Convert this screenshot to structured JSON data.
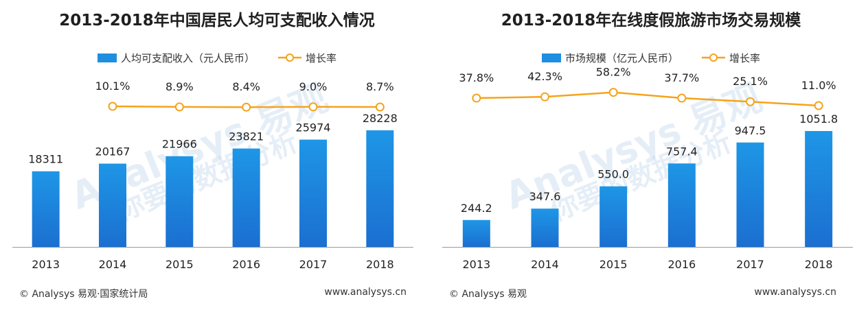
{
  "colors": {
    "bar": "#1e8fe0",
    "bar_dark": "#1a74d4",
    "line": "#f5a31a",
    "axis": "#999999"
  },
  "left": {
    "title": "2013-2018年中国居民人均可支配收入情况",
    "legend": {
      "bar": "人均可支配收入（元人民币）",
      "line": "增长率"
    },
    "footer_left": "© Analysys 易观·国家统计局",
    "footer_right": "www.analysys.cn"
  },
  "right": {
    "title": "2013-2018年在线度假旅游市场交易规模",
    "legend": {
      "bar": "市场规模（亿元人民币）",
      "line": "增长率"
    },
    "footer_left": "© Analysys 易观",
    "footer_right": "www.analysys.cn"
  },
  "watermark": {
    "brand": "Analysys 易观",
    "slogan": "你要的数据分析"
  },
  "chart_data": [
    {
      "type": "bar",
      "title": "2013-2018年中国居民人均可支配收入情况",
      "categories": [
        "2013",
        "2014",
        "2015",
        "2016",
        "2017",
        "2018"
      ],
      "series": [
        {
          "name": "人均可支配收入（元人民币）",
          "type": "bar",
          "values": [
            18311,
            20167,
            21966,
            23821,
            25974,
            28228
          ],
          "labels": [
            "18311",
            "20167",
            "21966",
            "23821",
            "25974",
            "28228"
          ]
        },
        {
          "name": "增长率",
          "type": "line",
          "values": [
            null,
            10.1,
            8.9,
            8.4,
            9.0,
            8.7
          ],
          "labels": [
            "",
            "10.1%",
            "8.9%",
            "8.4%",
            "9.0%",
            "8.7%"
          ]
        }
      ],
      "legend": "top-center",
      "grid": false
    },
    {
      "type": "bar",
      "title": "2013-2018年在线度假旅游市场交易规模",
      "categories": [
        "2013",
        "2014",
        "2015",
        "2016",
        "2017",
        "2018"
      ],
      "series": [
        {
          "name": "市场规模（亿元人民币）",
          "type": "bar",
          "values": [
            244.2,
            347.6,
            550.0,
            757.4,
            947.5,
            1051.8
          ],
          "labels": [
            "244.2",
            "347.6",
            "550.0",
            "757.4",
            "947.5",
            "1051.8"
          ]
        },
        {
          "name": "增长率",
          "type": "line",
          "values": [
            37.8,
            42.3,
            58.2,
            37.7,
            25.1,
            11.0
          ],
          "labels": [
            "37.8%",
            "42.3%",
            "58.2%",
            "37.7%",
            "25.1%",
            "11.0%"
          ]
        }
      ],
      "legend": "top-center",
      "grid": false
    }
  ]
}
